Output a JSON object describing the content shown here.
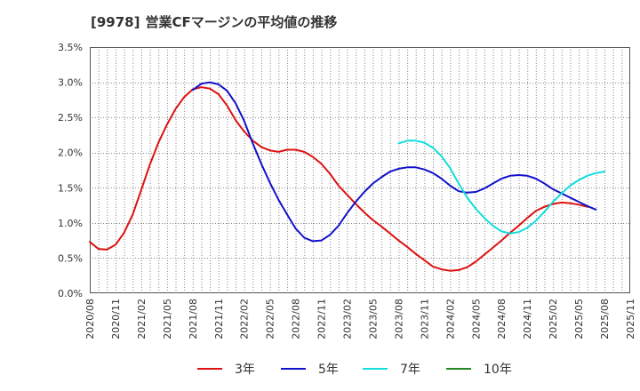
{
  "title": {
    "code": "[9978]",
    "text": "営業CFマージンの平均値の推移"
  },
  "chart_data": {
    "type": "line",
    "title": "[9978] 営業CFマージンの平均値の推移",
    "xlabel": "",
    "ylabel": "",
    "ylim": [
      0,
      3.5
    ],
    "yticks": [
      "0.0%",
      "0.5%",
      "1.0%",
      "1.5%",
      "2.0%",
      "2.5%",
      "3.0%",
      "3.5%"
    ],
    "xticks": [
      "2020/08",
      "2020/11",
      "2021/02",
      "2021/05",
      "2021/08",
      "2021/11",
      "2022/02",
      "2022/05",
      "2022/08",
      "2022/11",
      "2023/02",
      "2023/05",
      "2023/08",
      "2023/11",
      "2024/02",
      "2024/05",
      "2024/08",
      "2024/11",
      "2025/02",
      "2025/05",
      "2025/08",
      "2025/11"
    ],
    "grid": true,
    "legend_position": "bottom",
    "series": [
      {
        "name": "3年",
        "color": "#dd1111",
        "start_month_index": 0,
        "values": [
          0.73,
          0.63,
          0.62,
          0.69,
          0.86,
          1.12,
          1.47,
          1.83,
          2.14,
          2.4,
          2.62,
          2.79,
          2.9,
          2.93,
          2.91,
          2.83,
          2.67,
          2.46,
          2.3,
          2.17,
          2.08,
          2.03,
          2.01,
          2.04,
          2.04,
          2.01,
          1.94,
          1.84,
          1.7,
          1.53,
          1.4,
          1.27,
          1.15,
          1.04,
          0.95,
          0.85,
          0.75,
          0.66,
          0.56,
          0.47,
          0.38,
          0.34,
          0.32,
          0.33,
          0.37,
          0.45,
          0.55,
          0.65,
          0.75,
          0.86,
          0.96,
          1.07,
          1.17,
          1.23,
          1.27,
          1.29,
          1.28,
          1.26,
          1.23
        ]
      },
      {
        "name": "5年",
        "color": "#1111cc",
        "start_month_index": 12,
        "values": [
          2.89,
          2.98,
          3.0,
          2.97,
          2.88,
          2.7,
          2.45,
          2.13,
          1.84,
          1.57,
          1.33,
          1.12,
          0.92,
          0.79,
          0.74,
          0.75,
          0.83,
          0.96,
          1.14,
          1.3,
          1.44,
          1.56,
          1.65,
          1.73,
          1.77,
          1.79,
          1.79,
          1.76,
          1.71,
          1.63,
          1.53,
          1.45,
          1.43,
          1.44,
          1.49,
          1.56,
          1.63,
          1.67,
          1.68,
          1.67,
          1.63,
          1.56,
          1.48,
          1.42,
          1.36,
          1.3,
          1.24,
          1.19
        ]
      },
      {
        "name": "7年",
        "color": "#11dddd",
        "start_month_index": 36,
        "values": [
          2.13,
          2.17,
          2.17,
          2.14,
          2.07,
          1.95,
          1.78,
          1.56,
          1.36,
          1.2,
          1.07,
          0.96,
          0.88,
          0.85,
          0.87,
          0.93,
          1.03,
          1.16,
          1.3,
          1.42,
          1.53,
          1.61,
          1.67,
          1.71,
          1.73
        ]
      },
      {
        "name": "10年",
        "color": "#228822",
        "start_month_index": 0,
        "values": []
      }
    ]
  }
}
